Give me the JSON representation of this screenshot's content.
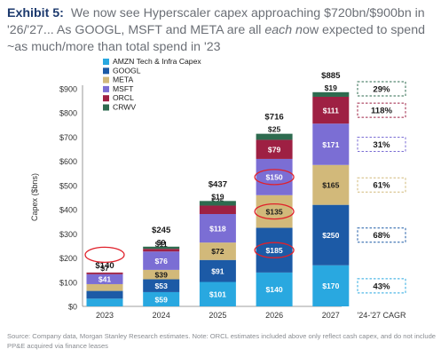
{
  "header": {
    "lead": "Exhibit 5:",
    "line_a": "We now see Hyperscaler capex approaching $720bn/$900bn in '26/'27... As GOOGL, MSFT and META are all ",
    "line_em": "each n",
    "line_b": "ow expected to spend ~as much/more than total spend in '23"
  },
  "footer": "Source: Company data, Morgan Stanley Research estimates. Note: ORCL estimates included above only reflect cash capex, and do not include PP&E acquired via finance leases",
  "colors": {
    "AMZN": "#29a8e0",
    "GOOGL": "#1c5aa6",
    "META": "#d2b97a",
    "MSFT": "#7b6ed4",
    "ORCL": "#9e2043",
    "CRWV": "#2e6b4f",
    "highlight": "#e0212b"
  },
  "chart_data": {
    "type": "bar",
    "stacked": true,
    "ylabel": "Capex ($bns)",
    "ylim": [
      0,
      900
    ],
    "yticks": [
      "$0",
      "$100",
      "$200",
      "$300",
      "$400",
      "$500",
      "$600",
      "$700",
      "$800",
      "$900"
    ],
    "grid": false,
    "legend_position": "top-left",
    "categories": [
      "2023",
      "2024",
      "2025",
      "2026",
      "2027"
    ],
    "series": [
      {
        "name": "AMZN Tech & Infra Capex",
        "color": "#29a8e0",
        "values": [
          32,
          59,
          101,
          140,
          170
        ],
        "labels": [
          "$32",
          "$59",
          "$101",
          "$140",
          "$170"
        ]
      },
      {
        "name": "GOOGL",
        "color": "#1c5aa6",
        "values": [
          32,
          53,
          91,
          185,
          250
        ],
        "labels": [
          "$32",
          "$53",
          "$91",
          "$185",
          "$250"
        ]
      },
      {
        "name": "META",
        "color": "#d2b97a",
        "values": [
          28,
          39,
          72,
          135,
          165
        ],
        "labels": [
          "$28",
          "$39",
          "$72",
          "$135",
          "$165"
        ]
      },
      {
        "name": "MSFT",
        "color": "#7b6ed4",
        "values": [
          41,
          76,
          118,
          150,
          171
        ],
        "labels": [
          "$41",
          "$76",
          "$118",
          "$150",
          "$171"
        ]
      },
      {
        "name": "ORCL",
        "color": "#9e2043",
        "values": [
          7,
          11,
          35,
          79,
          111
        ],
        "labels": [
          "$7",
          "$11",
          "$35",
          "$79",
          "$111"
        ]
      },
      {
        "name": "CRWV",
        "color": "#2e6b4f",
        "values": [
          0,
          9,
          19,
          25,
          19
        ],
        "labels": [
          "",
          "$9",
          "$19",
          "$25",
          "$19"
        ]
      }
    ],
    "totals": [
      "$140",
      "$245",
      "$437",
      "$716",
      "$885"
    ],
    "cagr_header": "'24-'27 CAGR",
    "cagr": [
      {
        "series": "CRWV",
        "label": "29%",
        "color": "#2e6b4f"
      },
      {
        "series": "ORCL",
        "label": "118%",
        "color": "#9e2043"
      },
      {
        "series": "MSFT",
        "label": "31%",
        "color": "#7b6ed4"
      },
      {
        "series": "META",
        "label": "61%",
        "color": "#d2b97a"
      },
      {
        "series": "GOOGL",
        "label": "68%",
        "color": "#1c5aa6"
      },
      {
        "series": "AMZN Tech & Infra Capex",
        "label": "43%",
        "color": "#29a8e0"
      }
    ],
    "highlights": [
      {
        "category": "2023",
        "target": "total"
      },
      {
        "category": "2026",
        "target": "GOOGL"
      },
      {
        "category": "2026",
        "target": "META"
      },
      {
        "category": "2026",
        "target": "MSFT"
      }
    ]
  }
}
